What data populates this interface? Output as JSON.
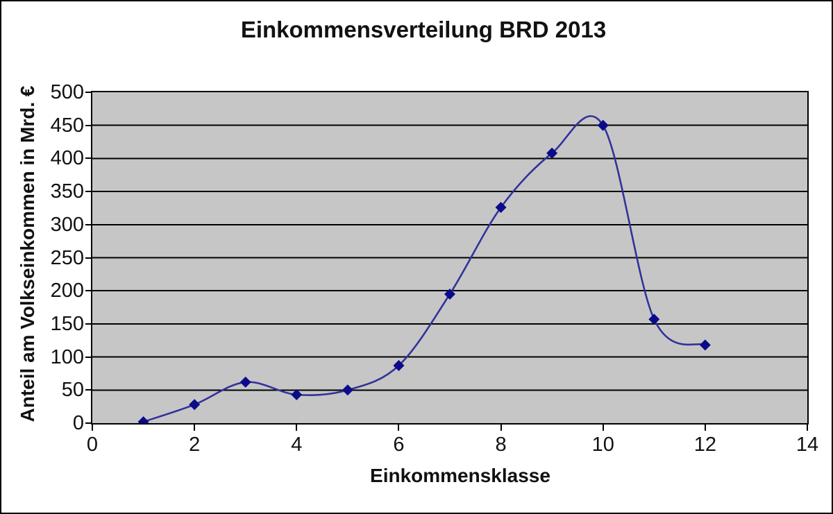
{
  "chart_data": {
    "type": "line",
    "title": "Einkommensverteilung BRD 2013",
    "xlabel": "Einkommensklasse",
    "ylabel": "Anteil am Volkseinkommen in Mrd. €",
    "x": [
      1,
      2,
      3,
      4,
      5,
      6,
      7,
      8,
      9,
      10,
      11,
      12
    ],
    "y": [
      2,
      28,
      62,
      43,
      50,
      87,
      195,
      326,
      408,
      450,
      157,
      118
    ],
    "xlim": [
      0,
      14
    ],
    "ylim": [
      0,
      500
    ],
    "x_ticks": [
      0,
      2,
      4,
      6,
      8,
      10,
      12,
      14
    ],
    "y_ticks": [
      0,
      50,
      100,
      150,
      200,
      250,
      300,
      350,
      400,
      450,
      500
    ],
    "grid": "horizontal",
    "line_smooth": true,
    "marker": "diamond",
    "legend": "none",
    "colors": {
      "line": "#32329b",
      "marker": "#0b0b8a",
      "plot_bg": "#c6c6c6",
      "gridline": "#000000",
      "text": "#111111"
    }
  }
}
